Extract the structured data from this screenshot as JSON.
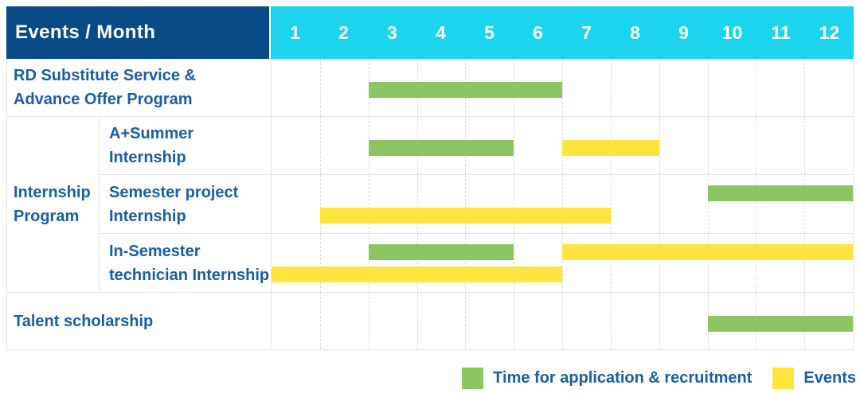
{
  "header": {
    "corner_label": "Events / Month",
    "months": [
      "1",
      "2",
      "3",
      "4",
      "5",
      "6",
      "7",
      "8",
      "9",
      "10",
      "11",
      "12"
    ]
  },
  "colors": {
    "navy": "#084B87",
    "cyan": "#1CD4EE",
    "green": "#8CC663",
    "yellow": "#FFE440",
    "label_text": "#1A5EA4",
    "grid_border": "#E4E4E4",
    "grid_dash": "#DADADA"
  },
  "legend": {
    "items": [
      {
        "series": "application",
        "label": "Time for application & recruitment",
        "color": "#8CC663"
      },
      {
        "series": "events",
        "label": "Events",
        "color": "#FFE440"
      }
    ]
  },
  "chart_data": {
    "type": "gantt",
    "x_unit": "month",
    "x_ticks": [
      1,
      2,
      3,
      4,
      5,
      6,
      7,
      8,
      9,
      10,
      11,
      12
    ],
    "series_colors": {
      "application": "#8CC663",
      "events": "#FFE440"
    },
    "rows": [
      {
        "id": "rd-substitute",
        "label": "RD Substitute Service &\nAdvance Offer Program",
        "bars": [
          {
            "series": "application",
            "start": 3,
            "end": 6,
            "lane": 0
          }
        ]
      },
      {
        "id": "internship-program",
        "group_label": "Internship\nProgram",
        "children": [
          {
            "id": "a-plus-summer-internship",
            "label": "A+Summer\nInternship",
            "bars": [
              {
                "series": "application",
                "start": 3,
                "end": 5,
                "lane": 0
              },
              {
                "series": "events",
                "start": 7,
                "end": 8,
                "lane": 0
              }
            ]
          },
          {
            "id": "semester-project-internship",
            "label": "Semester project\nInternship",
            "bars": [
              {
                "series": "application",
                "start": 10,
                "end": 12,
                "lane": 0
              },
              {
                "series": "events",
                "start": 2,
                "end": 7,
                "lane": 1
              }
            ]
          },
          {
            "id": "in-semester-technician-internship",
            "label": "In-Semester\ntechnician Internship",
            "bars": [
              {
                "series": "application",
                "start": 3,
                "end": 5,
                "lane": 0
              },
              {
                "series": "events",
                "start": 7,
                "end": 12,
                "lane": 0
              },
              {
                "series": "events",
                "start": 1,
                "end": 6,
                "lane": 1
              }
            ]
          }
        ]
      },
      {
        "id": "talent-scholarship",
        "label": "Talent scholarship",
        "bars": [
          {
            "series": "application",
            "start": 10,
            "end": 12,
            "lane": 0
          }
        ]
      }
    ]
  }
}
